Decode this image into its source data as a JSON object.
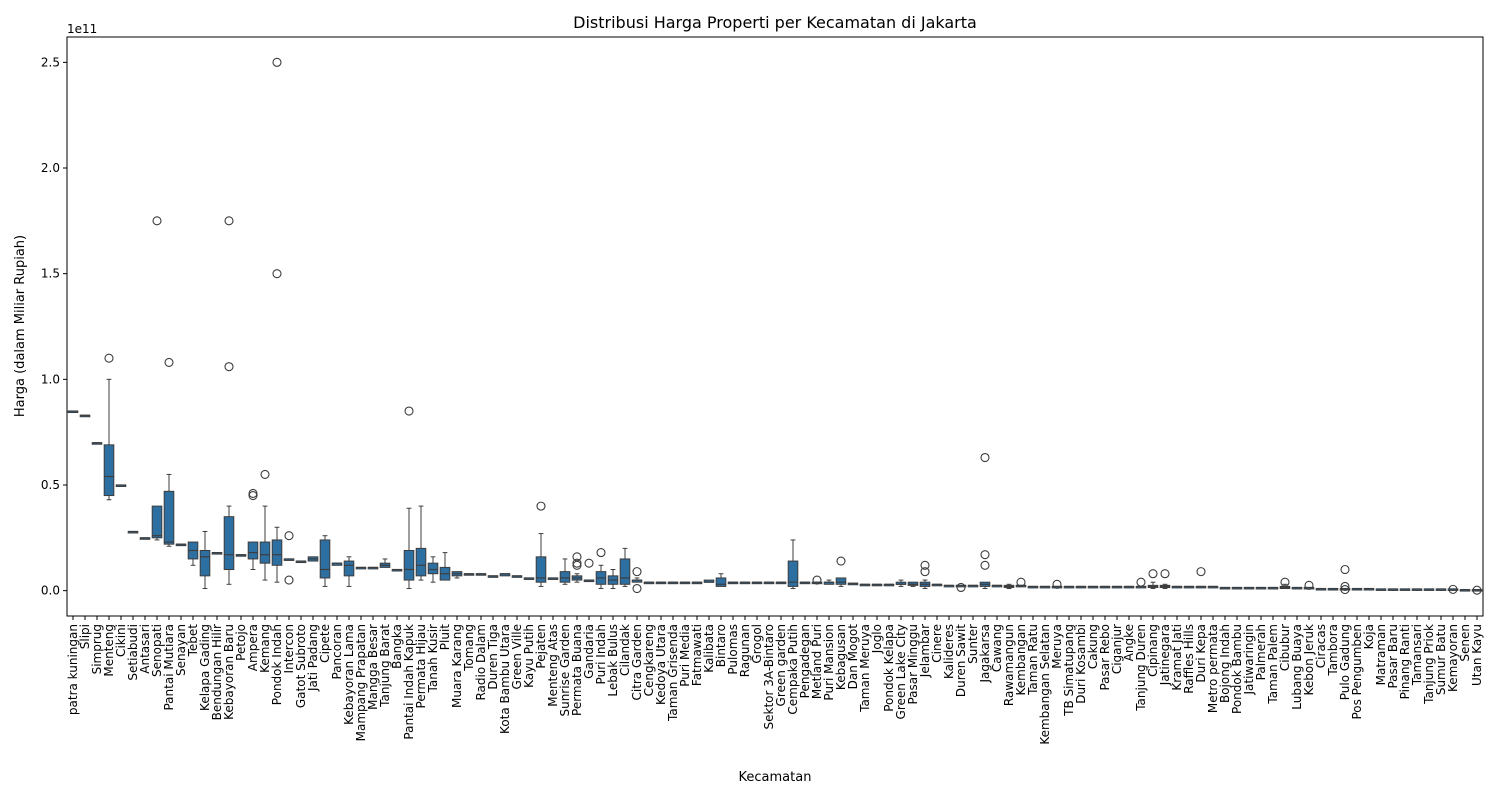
{
  "chart_data": {
    "type": "box",
    "title": "Distribusi Harga Properti per Kecamatan di Jakarta",
    "xlabel": "Kecamatan",
    "ylabel": "Harga (dalam Miliar Rupiah)",
    "y_scale_label": "1e11",
    "ylim": [
      -1.2,
      26.2
    ],
    "y_unit": "1e10",
    "yticks": [
      0,
      5,
      10,
      15,
      20,
      25
    ],
    "ytick_labels": [
      "0.0",
      "0.5",
      "1.0",
      "1.5",
      "2.0",
      "2.5"
    ],
    "grid": false,
    "legend": "none",
    "box_color": "#2e6fa2",
    "categories": [
      "patra kuningan",
      "Slipi",
      "Simprug",
      "Menteng",
      "Cikini",
      "Setiabudi",
      "Antasari",
      "Senopati",
      "Pantai Mutiara",
      "Senayan",
      "Tebet",
      "Kelapa Gading",
      "Bendungan Hilir",
      "Kebayoran Baru",
      "Petojo",
      "Ampera",
      "Kemang",
      "Pondok Indah",
      "Intercon",
      "Gatot Subroto",
      "Jati Padang",
      "Cipete",
      "Pancoran",
      "Kebayoran Lama",
      "Mampang Prapatan",
      "Mangga Besar",
      "Tanjung Barat",
      "Bangka",
      "Pantai Indah Kapuk",
      "Permata Hijau",
      "Tanah Kusir",
      "Pluit",
      "Muara Karang",
      "Tomang",
      "Radio Dalam",
      "Duren Tiga",
      "Kota Bambu Utara",
      "Green Ville",
      "Kayu Putih",
      "Pejaten",
      "Menteng Atas",
      "Sunrise Garden",
      "Permata Buana",
      "Gandaria",
      "Puri Indah",
      "Lebak Bulus",
      "Cilandak",
      "Citra Garden",
      "Cengkareng",
      "Kedoya Utara",
      "Taman Grisenda",
      "Puri Media",
      "Fatmawati",
      "Kalibata",
      "Bintaro",
      "Pulomas",
      "Ragunan",
      "Grogol",
      "Sektor 3A-Bintaro",
      "Green garden",
      "Cempaka Putih",
      "Pengadegan",
      "Metland Puri",
      "Puri Mansion",
      "Kebagusan",
      "Dan Mogot",
      "Taman Meruya",
      "Joglo",
      "Pondok Kelapa",
      "Green Lake City",
      "Pasar Minggu",
      "Jelambar",
      "Cinere",
      "Kalideres",
      "Duren Sawit",
      "Sunter",
      "Jagakarsa",
      "Cawang",
      "Rawamangun",
      "Kembangan",
      "Taman Ratu",
      "Kembangan Selatan",
      "Meruya",
      "TB Simatupang",
      "Duri Kosambi",
      "Cakung",
      "Pasar Rebo",
      "Ciganjur",
      "Angke",
      "Tanjung Duren",
      "Cipinang",
      "Jatinegara",
      "Kramat Jati",
      "Raffles Hills",
      "Duri Kepa",
      "Metro permata",
      "Bojong Indah",
      "Pondok Bambu",
      "Jatiwaringin",
      "Palmerah",
      "Taman Palem",
      "Cibubur",
      "Lubang Buaya",
      "Kebon Jeruk",
      "Ciracas",
      "Tambora",
      "Pulo Gadung",
      "Pos Pengumben",
      "Koja",
      "Matraman",
      "Pasar Baru",
      "Pinang Ranti",
      "Tamansari",
      "Tanjung Priok",
      "Sumur Batu",
      "Kemayoran",
      "Senen",
      "Utan Kayu"
    ],
    "series": [
      {
        "values": [
          {
            "q1": 8.5,
            "med": 8.5,
            "q3": 8.5
          },
          {
            "q1": 8.3,
            "med": 8.3,
            "q3": 8.3
          },
          {
            "q1": 7.0,
            "med": 7.0,
            "q3": 7.0
          },
          {
            "lo": 4.3,
            "q1": 4.5,
            "med": 5.4,
            "q3": 6.9,
            "hi": 10.0,
            "out": [
              11.0
            ]
          },
          {
            "q1": 5.0,
            "med": 5.0,
            "q3": 5.0
          },
          {
            "q1": 2.8,
            "med": 2.8,
            "q3": 2.8
          },
          {
            "q1": 2.5,
            "med": 2.5,
            "q3": 2.5
          },
          {
            "lo": 2.4,
            "q1": 2.5,
            "med": 2.6,
            "q3": 4.0,
            "hi": 4.0,
            "out": [
              17.5
            ]
          },
          {
            "lo": 2.1,
            "q1": 2.2,
            "med": 2.3,
            "q3": 4.7,
            "hi": 5.5,
            "out": [
              10.8
            ]
          },
          {
            "q1": 2.2,
            "med": 2.2,
            "q3": 2.2
          },
          {
            "lo": 1.2,
            "q1": 1.5,
            "med": 1.9,
            "q3": 2.3,
            "hi": 2.3
          },
          {
            "lo": 0.1,
            "q1": 0.7,
            "med": 1.6,
            "q3": 1.9,
            "hi": 2.8
          },
          {
            "q1": 1.8,
            "med": 1.8,
            "q3": 1.8
          },
          {
            "lo": 0.3,
            "q1": 1.0,
            "med": 1.7,
            "q3": 3.5,
            "hi": 4.0,
            "out": [
              17.5,
              10.6
            ]
          },
          {
            "q1": 1.7,
            "med": 1.7,
            "q3": 1.7
          },
          {
            "lo": 1.0,
            "q1": 1.5,
            "med": 1.8,
            "q3": 2.3,
            "hi": 2.3,
            "out": [
              4.5,
              4.6
            ]
          },
          {
            "lo": 0.5,
            "q1": 1.3,
            "med": 1.7,
            "q3": 2.3,
            "hi": 4.0,
            "out": [
              5.5
            ]
          },
          {
            "lo": 0.4,
            "q1": 1.2,
            "med": 1.7,
            "q3": 2.4,
            "hi": 3.0,
            "out": [
              25.0,
              15.0
            ]
          },
          {
            "q1": 1.5,
            "med": 1.5,
            "q3": 1.5,
            "out": [
              2.6,
              0.5
            ]
          },
          {
            "q1": 1.4,
            "med": 1.4,
            "q3": 1.4
          },
          {
            "lo": 1.4,
            "q1": 1.4,
            "med": 1.5,
            "q3": 1.6,
            "hi": 1.6
          },
          {
            "lo": 0.2,
            "q1": 0.6,
            "med": 1.0,
            "q3": 2.4,
            "hi": 2.6
          },
          {
            "lo": 1.2,
            "q1": 1.2,
            "med": 1.3,
            "q3": 1.3,
            "hi": 1.3
          },
          {
            "lo": 0.2,
            "q1": 0.7,
            "med": 1.2,
            "q3": 1.4,
            "hi": 1.6
          },
          {
            "q1": 1.1,
            "med": 1.1,
            "q3": 1.1
          },
          {
            "q1": 1.1,
            "med": 1.1,
            "q3": 1.1
          },
          {
            "lo": 1.1,
            "q1": 1.1,
            "med": 1.2,
            "q3": 1.3,
            "hi": 1.5
          },
          {
            "q1": 1.0,
            "med": 1.0,
            "q3": 1.0
          },
          {
            "lo": 0.1,
            "q1": 0.5,
            "med": 1.0,
            "q3": 1.9,
            "hi": 3.9,
            "out": [
              8.5
            ]
          },
          {
            "lo": 0.5,
            "q1": 0.7,
            "med": 1.2,
            "q3": 2.0,
            "hi": 4.0
          },
          {
            "lo": 0.4,
            "q1": 0.8,
            "med": 1.0,
            "q3": 1.3,
            "hi": 1.6
          },
          {
            "lo": 0.5,
            "q1": 0.5,
            "med": 0.8,
            "q3": 1.1,
            "hi": 1.8
          },
          {
            "lo": 0.6,
            "q1": 0.7,
            "med": 0.8,
            "q3": 0.9,
            "hi": 0.9
          },
          {
            "q1": 0.8,
            "med": 0.8,
            "q3": 0.8
          },
          {
            "q1": 0.8,
            "med": 0.8,
            "q3": 0.8
          },
          {
            "q1": 0.7,
            "med": 0.7,
            "q3": 0.7
          },
          {
            "lo": 0.7,
            "q1": 0.7,
            "med": 0.8,
            "q3": 0.8,
            "hi": 0.8
          },
          {
            "q1": 0.7,
            "med": 0.7,
            "q3": 0.7
          },
          {
            "q1": 0.6,
            "med": 0.6,
            "q3": 0.6
          },
          {
            "lo": 0.2,
            "q1": 0.4,
            "med": 0.6,
            "q3": 1.6,
            "hi": 2.7,
            "out": [
              4.0
            ]
          },
          {
            "q1": 0.6,
            "med": 0.6,
            "q3": 0.6
          },
          {
            "lo": 0.3,
            "q1": 0.4,
            "med": 0.6,
            "q3": 0.9,
            "hi": 1.5
          },
          {
            "lo": 0.4,
            "q1": 0.5,
            "med": 0.6,
            "q3": 0.7,
            "hi": 0.8,
            "out": [
              1.6,
              1.3,
              1.2
            ]
          },
          {
            "q1": 0.5,
            "med": 0.5,
            "q3": 0.5,
            "out": [
              1.3
            ]
          },
          {
            "lo": 0.1,
            "q1": 0.3,
            "med": 0.6,
            "q3": 0.9,
            "hi": 1.2,
            "out": [
              1.8
            ]
          },
          {
            "lo": 0.1,
            "q1": 0.3,
            "med": 0.5,
            "q3": 0.7,
            "hi": 1.0
          },
          {
            "lo": 0.2,
            "q1": 0.3,
            "med": 0.6,
            "q3": 1.5,
            "hi": 2.0
          },
          {
            "lo": 0.4,
            "q1": 0.4,
            "med": 0.5,
            "q3": 0.5,
            "hi": 0.6,
            "out": [
              0.9,
              0.1
            ]
          },
          {
            "q1": 0.4,
            "med": 0.4,
            "q3": 0.4
          },
          {
            "q1": 0.4,
            "med": 0.4,
            "q3": 0.4
          },
          {
            "q1": 0.4,
            "med": 0.4,
            "q3": 0.4
          },
          {
            "q1": 0.4,
            "med": 0.4,
            "q3": 0.4
          },
          {
            "q1": 0.4,
            "med": 0.4,
            "q3": 0.4
          },
          {
            "lo": 0.4,
            "q1": 0.4,
            "med": 0.4,
            "q3": 0.5,
            "hi": 0.5
          },
          {
            "lo": 0.2,
            "q1": 0.2,
            "med": 0.3,
            "q3": 0.6,
            "hi": 0.8
          },
          {
            "q1": 0.4,
            "med": 0.4,
            "q3": 0.4
          },
          {
            "q1": 0.4,
            "med": 0.4,
            "q3": 0.4
          },
          {
            "q1": 0.4,
            "med": 0.4,
            "q3": 0.4
          },
          {
            "q1": 0.4,
            "med": 0.4,
            "q3": 0.4
          },
          {
            "q1": 0.4,
            "med": 0.4,
            "q3": 0.4
          },
          {
            "lo": 0.1,
            "q1": 0.2,
            "med": 0.4,
            "q3": 1.4,
            "hi": 2.4
          },
          {
            "q1": 0.4,
            "med": 0.4,
            "q3": 0.4
          },
          {
            "q1": 0.4,
            "med": 0.4,
            "q3": 0.4,
            "out": [
              0.5
            ]
          },
          {
            "lo": 0.3,
            "q1": 0.3,
            "med": 0.4,
            "q3": 0.4,
            "hi": 0.5
          },
          {
            "lo": 0.2,
            "q1": 0.3,
            "med": 0.4,
            "q3": 0.6,
            "hi": 0.6,
            "out": [
              1.4
            ]
          },
          {
            "q1": 0.35,
            "med": 0.35,
            "q3": 0.35
          },
          {
            "q1": 0.3,
            "med": 0.3,
            "q3": 0.3
          },
          {
            "q1": 0.3,
            "med": 0.3,
            "q3": 0.3
          },
          {
            "q1": 0.3,
            "med": 0.3,
            "q3": 0.3
          },
          {
            "lo": 0.2,
            "q1": 0.3,
            "med": 0.3,
            "q3": 0.4,
            "hi": 0.5
          },
          {
            "lo": 0.2,
            "q1": 0.25,
            "med": 0.3,
            "q3": 0.4,
            "hi": 0.4
          },
          {
            "lo": 0.1,
            "q1": 0.2,
            "med": 0.3,
            "q3": 0.4,
            "hi": 0.5,
            "out": [
              1.2,
              0.9
            ]
          },
          {
            "q1": 0.3,
            "med": 0.3,
            "q3": 0.3
          },
          {
            "q1": 0.25,
            "med": 0.25,
            "q3": 0.25
          },
          {
            "q1": 0.25,
            "med": 0.25,
            "q3": 0.25,
            "out": [
              0.15
            ]
          },
          {
            "q1": 0.25,
            "med": 0.25,
            "q3": 0.25
          },
          {
            "lo": 0.1,
            "q1": 0.2,
            "med": 0.3,
            "q3": 0.4,
            "hi": 0.4,
            "out": [
              6.3,
              1.7,
              1.2
            ]
          },
          {
            "q1": 0.25,
            "med": 0.25,
            "q3": 0.25
          },
          {
            "lo": 0.1,
            "q1": 0.15,
            "med": 0.2,
            "q3": 0.25,
            "hi": 0.3
          },
          {
            "q1": 0.25,
            "med": 0.25,
            "q3": 0.25,
            "out": [
              0.4
            ]
          },
          {
            "q1": 0.2,
            "med": 0.2,
            "q3": 0.2
          },
          {
            "q1": 0.2,
            "med": 0.2,
            "q3": 0.2
          },
          {
            "q1": 0.2,
            "med": 0.2,
            "q3": 0.2,
            "out": [
              0.3
            ]
          },
          {
            "q1": 0.2,
            "med": 0.2,
            "q3": 0.2
          },
          {
            "q1": 0.2,
            "med": 0.2,
            "q3": 0.2
          },
          {
            "q1": 0.2,
            "med": 0.2,
            "q3": 0.2
          },
          {
            "q1": 0.2,
            "med": 0.2,
            "q3": 0.2
          },
          {
            "q1": 0.2,
            "med": 0.2,
            "q3": 0.2
          },
          {
            "q1": 0.2,
            "med": 0.2,
            "q3": 0.2
          },
          {
            "q1": 0.2,
            "med": 0.2,
            "q3": 0.2,
            "out": [
              0.4
            ]
          },
          {
            "lo": 0.1,
            "q1": 0.15,
            "med": 0.2,
            "q3": 0.25,
            "hi": 0.4,
            "out": [
              0.8
            ]
          },
          {
            "lo": 0.1,
            "q1": 0.15,
            "med": 0.2,
            "q3": 0.25,
            "hi": 0.3,
            "out": [
              0.8
            ]
          },
          {
            "q1": 0.2,
            "med": 0.2,
            "q3": 0.2
          },
          {
            "q1": 0.2,
            "med": 0.2,
            "q3": 0.2
          },
          {
            "q1": 0.2,
            "med": 0.2,
            "q3": 0.2,
            "out": [
              0.9
            ]
          },
          {
            "q1": 0.2,
            "med": 0.2,
            "q3": 0.2
          },
          {
            "q1": 0.15,
            "med": 0.15,
            "q3": 0.15
          },
          {
            "q1": 0.15,
            "med": 0.15,
            "q3": 0.15
          },
          {
            "q1": 0.15,
            "med": 0.15,
            "q3": 0.15
          },
          {
            "q1": 0.15,
            "med": 0.15,
            "q3": 0.15
          },
          {
            "q1": 0.15,
            "med": 0.15,
            "q3": 0.15
          },
          {
            "lo": 0.1,
            "q1": 0.1,
            "med": 0.15,
            "q3": 0.2,
            "hi": 0.3,
            "out": [
              0.4
            ]
          },
          {
            "q1": 0.15,
            "med": 0.15,
            "q3": 0.15
          },
          {
            "q1": 0.15,
            "med": 0.15,
            "q3": 0.15,
            "out": [
              0.25
            ]
          },
          {
            "q1": 0.1,
            "med": 0.1,
            "q3": 0.1
          },
          {
            "q1": 0.1,
            "med": 0.1,
            "q3": 0.1
          },
          {
            "q1": 0.1,
            "med": 0.1,
            "q3": 0.1,
            "out": [
              1.0,
              0.2,
              0.05
            ]
          },
          {
            "q1": 0.1,
            "med": 0.1,
            "q3": 0.1
          },
          {
            "q1": 0.1,
            "med": 0.1,
            "q3": 0.1
          },
          {
            "q1": 0.08,
            "med": 0.08,
            "q3": 0.08
          },
          {
            "q1": 0.08,
            "med": 0.08,
            "q3": 0.08
          },
          {
            "q1": 0.08,
            "med": 0.08,
            "q3": 0.08
          },
          {
            "q1": 0.08,
            "med": 0.08,
            "q3": 0.08
          },
          {
            "q1": 0.08,
            "med": 0.08,
            "q3": 0.08
          },
          {
            "q1": 0.08,
            "med": 0.08,
            "q3": 0.08
          },
          {
            "q1": 0.08,
            "med": 0.08,
            "q3": 0.08,
            "out": [
              0.06
            ]
          },
          {
            "q1": 0.05,
            "med": 0.05,
            "q3": 0.05
          },
          {
            "q1": 0.05,
            "med": 0.05,
            "q3": 0.05,
            "out": [
              0.02
            ]
          }
        ]
      }
    ]
  }
}
